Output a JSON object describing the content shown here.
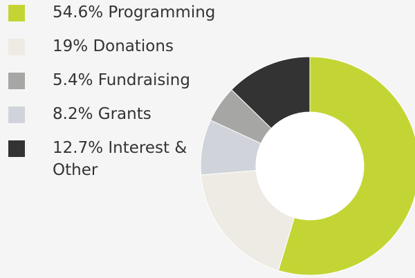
{
  "chart_data": {
    "type": "donut",
    "categories": [
      "Programming",
      "Donations",
      "Grants",
      "Fundraising",
      "Interest & Other"
    ],
    "values": [
      54.6,
      19,
      8.2,
      5.4,
      12.7
    ],
    "value_labels": [
      "54.6%",
      "19%",
      "8.2%",
      "5.4%",
      "12.7%"
    ],
    "colors": [
      "#c3d534",
      "#eeebe4",
      "#d0d4da",
      "#a6a6a4",
      "#333333"
    ]
  }
}
